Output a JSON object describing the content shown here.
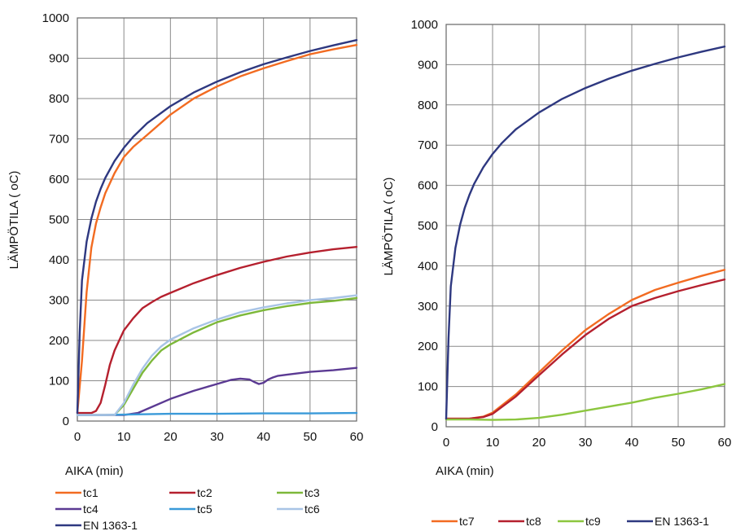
{
  "chart_data": [
    {
      "type": "line",
      "xlabel": "AIKA  (min)",
      "ylabel": "LÄMPÖTILA  ( oC)",
      "xlim": [
        0,
        60
      ],
      "ylim": [
        0,
        1000
      ],
      "xticks": [
        "0",
        "10",
        "20",
        "30",
        "40",
        "50",
        "60"
      ],
      "yticks": [
        "0",
        "100",
        "200",
        "300",
        "400",
        "500",
        "600",
        "700",
        "800",
        "900",
        "1000"
      ],
      "grid": true,
      "legend_position": "bottom",
      "series": [
        {
          "name": "tc1",
          "color": "#F26B21",
          "x": [
            0,
            1,
            2,
            3,
            4,
            5,
            6,
            8,
            10,
            12,
            15,
            20,
            25,
            30,
            35,
            40,
            45,
            50,
            55,
            60
          ],
          "y": [
            20,
            150,
            320,
            430,
            490,
            530,
            565,
            615,
            655,
            680,
            710,
            760,
            800,
            830,
            855,
            875,
            893,
            910,
            922,
            933
          ]
        },
        {
          "name": "tc2",
          "color": "#B5202E",
          "x": [
            0,
            3,
            4,
            5,
            6,
            7,
            8,
            9,
            10,
            12,
            14,
            16,
            18,
            20,
            25,
            30,
            35,
            40,
            45,
            50,
            55,
            60
          ],
          "y": [
            20,
            20,
            25,
            45,
            90,
            140,
            175,
            200,
            225,
            255,
            280,
            295,
            308,
            318,
            342,
            362,
            380,
            395,
            408,
            418,
            426,
            432
          ]
        },
        {
          "name": "tc3",
          "color": "#7DB83A",
          "x": [
            0,
            8,
            10,
            12,
            14,
            16,
            18,
            20,
            25,
            30,
            35,
            40,
            45,
            50,
            55,
            60
          ],
          "y": [
            15,
            15,
            40,
            80,
            120,
            150,
            175,
            190,
            220,
            245,
            262,
            275,
            285,
            293,
            298,
            305
          ]
        },
        {
          "name": "tc4",
          "color": "#5B3A93",
          "x": [
            0,
            10,
            13,
            15,
            20,
            25,
            30,
            33,
            35,
            37,
            38,
            39,
            40,
            41,
            42,
            43,
            45,
            50,
            55,
            60
          ],
          "y": [
            15,
            15,
            20,
            30,
            55,
            75,
            92,
            102,
            105,
            103,
            97,
            92,
            95,
            103,
            108,
            112,
            115,
            122,
            126,
            132
          ]
        },
        {
          "name": "tc5",
          "color": "#3A9AD9",
          "x": [
            0,
            5,
            10,
            15,
            20,
            30,
            40,
            50,
            60
          ],
          "y": [
            15,
            15,
            16,
            17,
            18,
            18,
            19,
            19,
            20
          ]
        },
        {
          "name": "tc6",
          "color": "#A8C4E6",
          "x": [
            0,
            8,
            10,
            12,
            14,
            16,
            18,
            20,
            25,
            30,
            35,
            40,
            45,
            50,
            55,
            60
          ],
          "y": [
            15,
            15,
            45,
            90,
            130,
            162,
            185,
            202,
            230,
            252,
            270,
            282,
            292,
            300,
            305,
            312
          ]
        },
        {
          "name": "EN 1363-1",
          "color": "#2E3880",
          "x": [
            0,
            0.5,
            1,
            2,
            3,
            4,
            5,
            6,
            8,
            10,
            12,
            15,
            20,
            25,
            30,
            35,
            40,
            45,
            50,
            55,
            60
          ],
          "y": [
            20,
            220,
            349,
            445,
            502,
            544,
            576,
            603,
            645,
            678,
            705,
            739,
            781,
            815,
            842,
            865,
            885,
            902,
            918,
            932,
            945
          ]
        }
      ]
    },
    {
      "type": "line",
      "xlabel": "AIKA  (min)",
      "ylabel": "LÄMPÖTILA  ( oC)",
      "xlim": [
        0,
        60
      ],
      "ylim": [
        0,
        1000
      ],
      "xticks": [
        "0",
        "10",
        "20",
        "30",
        "40",
        "50",
        "60"
      ],
      "yticks": [
        "0",
        "100",
        "200",
        "300",
        "400",
        "500",
        "600",
        "700",
        "800",
        "900",
        "1000"
      ],
      "grid": true,
      "legend_position": "bottom",
      "series": [
        {
          "name": "tc7",
          "color": "#F26B21",
          "x": [
            0,
            5,
            8,
            10,
            15,
            20,
            25,
            30,
            35,
            40,
            45,
            50,
            55,
            60
          ],
          "y": [
            20,
            20,
            25,
            35,
            80,
            135,
            190,
            240,
            280,
            315,
            340,
            358,
            375,
            390
          ]
        },
        {
          "name": "tc8",
          "color": "#B5202E",
          "x": [
            0,
            5,
            8,
            10,
            15,
            20,
            25,
            30,
            35,
            40,
            45,
            50,
            55,
            60
          ],
          "y": [
            20,
            20,
            24,
            32,
            75,
            128,
            180,
            228,
            268,
            300,
            320,
            337,
            352,
            366
          ]
        },
        {
          "name": "tc9",
          "color": "#8CC63F",
          "x": [
            0,
            5,
            10,
            15,
            20,
            25,
            30,
            35,
            40,
            45,
            50,
            55,
            60
          ],
          "y": [
            18,
            18,
            17,
            18,
            22,
            30,
            40,
            50,
            60,
            72,
            82,
            93,
            106
          ]
        },
        {
          "name": "EN 1363-1",
          "color": "#2E3880",
          "x": [
            0,
            0.5,
            1,
            2,
            3,
            4,
            5,
            6,
            8,
            10,
            12,
            15,
            20,
            25,
            30,
            35,
            40,
            45,
            50,
            55,
            60
          ],
          "y": [
            20,
            220,
            349,
            445,
            502,
            544,
            576,
            603,
            645,
            678,
            705,
            739,
            781,
            815,
            842,
            865,
            885,
            902,
            918,
            932,
            945
          ]
        }
      ]
    }
  ]
}
